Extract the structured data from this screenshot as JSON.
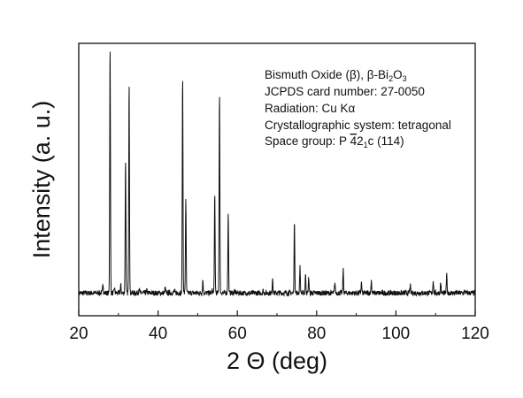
{
  "chart_data": {
    "type": "line",
    "title": "",
    "xlabel": "2 Θ (deg)",
    "ylabel": "Intensity (a. u.)",
    "xlim": [
      20,
      120
    ],
    "ylim": [
      0,
      100
    ],
    "xticks": [
      "20",
      "40",
      "60",
      "80",
      "100",
      "120"
    ],
    "grid": false,
    "legend": "none",
    "line_color": "#111111",
    "baseline": 3,
    "peaks": [
      {
        "x": 26.1,
        "y": 7
      },
      {
        "x": 27.9,
        "y": 100
      },
      {
        "x": 29.0,
        "y": 5
      },
      {
        "x": 30.6,
        "y": 6
      },
      {
        "x": 31.8,
        "y": 55
      },
      {
        "x": 32.7,
        "y": 86
      },
      {
        "x": 35.2,
        "y": 5
      },
      {
        "x": 37.2,
        "y": 4
      },
      {
        "x": 38.9,
        "y": 3
      },
      {
        "x": 41.8,
        "y": 5
      },
      {
        "x": 44.1,
        "y": 4
      },
      {
        "x": 46.2,
        "y": 88
      },
      {
        "x": 47.0,
        "y": 40
      },
      {
        "x": 51.3,
        "y": 8
      },
      {
        "x": 53.7,
        "y": 4
      },
      {
        "x": 54.3,
        "y": 41
      },
      {
        "x": 55.5,
        "y": 82
      },
      {
        "x": 57.7,
        "y": 34
      },
      {
        "x": 59.3,
        "y": 4
      },
      {
        "x": 61.2,
        "y": 3
      },
      {
        "x": 66.5,
        "y": 4
      },
      {
        "x": 68.9,
        "y": 9
      },
      {
        "x": 74.4,
        "y": 31
      },
      {
        "x": 75.8,
        "y": 13
      },
      {
        "x": 77.2,
        "y": 10
      },
      {
        "x": 78.0,
        "y": 9
      },
      {
        "x": 84.6,
        "y": 7
      },
      {
        "x": 86.7,
        "y": 12
      },
      {
        "x": 91.3,
        "y": 7
      },
      {
        "x": 93.8,
        "y": 8
      },
      {
        "x": 103.6,
        "y": 6
      },
      {
        "x": 109.4,
        "y": 8
      },
      {
        "x": 111.3,
        "y": 7
      },
      {
        "x": 112.8,
        "y": 10
      },
      {
        "x": 117.4,
        "y": 4
      }
    ],
    "annotations": [
      "Bismuth Oxide (β), β-Bi",
      "2",
      "O",
      "3",
      "JCPDS card number: 27-0050",
      "Radiation: Cu Kα",
      "Crystallographic system: tetragonal",
      "Space group: P ",
      "4",
      "2",
      "1",
      "c (114)"
    ]
  }
}
